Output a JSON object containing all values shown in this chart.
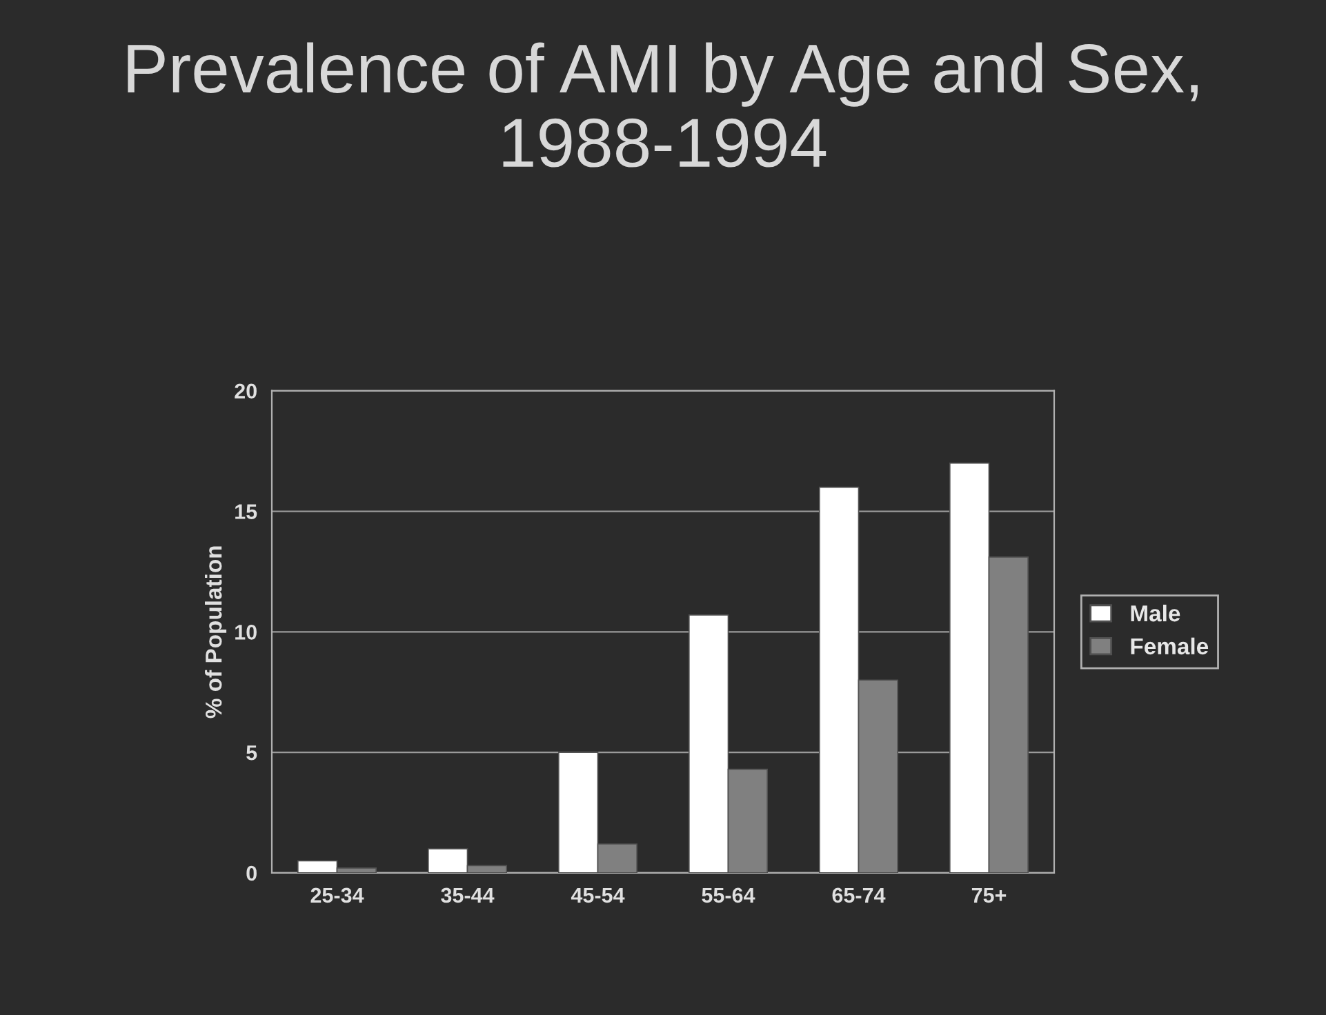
{
  "chart_data": {
    "type": "bar",
    "title": "Prevalence of AMI by Age and Sex, 1988-1994",
    "ylabel": "% of Population",
    "categories": [
      "25-34",
      "35-44",
      "45-54",
      "55-64",
      "65-74",
      "75+"
    ],
    "series": [
      {
        "name": "Male",
        "color": "#ffffff",
        "values": [
          0.5,
          1.0,
          5.0,
          10.7,
          16.0,
          17.0
        ]
      },
      {
        "name": "Female",
        "color": "#808080",
        "values": [
          0.2,
          0.3,
          1.2,
          4.3,
          8.0,
          13.1
        ]
      }
    ],
    "ylim": [
      0,
      20
    ],
    "yticks": [
      0,
      5,
      10,
      15,
      20
    ],
    "grid": "y",
    "legend": "right"
  }
}
